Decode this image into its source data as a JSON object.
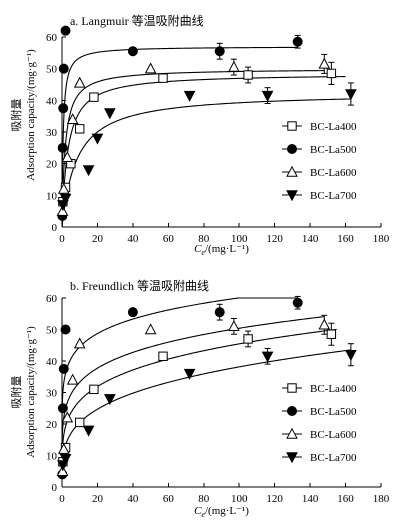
{
  "chart_data": [
    {
      "type": "scatter",
      "title": "a. Langmuir 等温吸附曲线",
      "xlabel_symbol": "C",
      "xlabel_sub": "e",
      "xlabel_unit": "/(mg·L⁻¹)",
      "ylabel_cn": "吸附量",
      "ylabel": "Adsorption capacity/(mg·g⁻¹)",
      "xlim": [
        0,
        180
      ],
      "ylim": [
        0,
        60
      ],
      "xticks": [
        "0",
        "20",
        "40",
        "60",
        "80",
        "100",
        "120",
        "140",
        "160",
        "180"
      ],
      "yticks": [
        "0",
        "10",
        "20",
        "30",
        "40",
        "50",
        "60"
      ],
      "legend_position": "bottom-right",
      "series": [
        {
          "name": "BC-La400",
          "marker": "square",
          "fit": "langmuir",
          "qm": 48.5,
          "kl": 0.3,
          "fit_xmax": 160,
          "x": [
            0.5,
            2,
            5,
            10,
            18,
            57,
            105,
            152
          ],
          "y": [
            8,
            12.5,
            20,
            31,
            41,
            47,
            48,
            48.5
          ],
          "err": [
            0,
            0,
            0,
            0,
            0,
            0,
            2.5,
            3.5
          ]
        },
        {
          "name": "BC-La500",
          "marker": "circle",
          "fit": "langmuir",
          "qm": 57,
          "kl": 1.5,
          "fit_xmax": 133,
          "x": [
            0.2,
            0.4,
            0.7,
            1,
            2,
            40,
            89,
            133
          ],
          "y": [
            3.5,
            25,
            37.5,
            50,
            62,
            55.5,
            55.5,
            58.5
          ],
          "err": [
            0,
            0,
            0,
            0,
            0,
            0,
            2.5,
            2
          ]
        },
        {
          "name": "BC-La600",
          "marker": "triangle",
          "fit": "langmuir",
          "qm": 50,
          "kl": 0.55,
          "fit_xmax": 148,
          "x": [
            0.3,
            1,
            3,
            6,
            10,
            50,
            97,
            148
          ],
          "y": [
            5,
            12,
            22,
            34,
            45.5,
            50,
            50.5,
            51.5
          ],
          "err": [
            0,
            0,
            0,
            0,
            0,
            0,
            2.5,
            3
          ]
        },
        {
          "name": "BC-La700",
          "marker": "triangle-down",
          "fit": "langmuir",
          "qm": 42.5,
          "kl": 0.12,
          "fit_xmax": 163,
          "x": [
            0.5,
            2,
            15,
            20,
            27,
            72,
            116,
            163
          ],
          "y": [
            7,
            9,
            18,
            28,
            36,
            41.5,
            41.5,
            42
          ],
          "err": [
            0,
            0,
            0,
            0,
            0,
            0,
            2.5,
            3.5
          ]
        }
      ]
    },
    {
      "type": "scatter",
      "title": "b. Freundlich 等温吸附曲线",
      "xlabel_symbol": "C",
      "xlabel_sub": "e",
      "xlabel_unit": "/(mg·L⁻¹)",
      "ylabel_cn": "吸附量",
      "ylabel": "Adsorption capacity/(mg·g⁻¹)",
      "xlim": [
        0,
        180
      ],
      "ylim": [
        0,
        60
      ],
      "xticks": [
        "0",
        "20",
        "40",
        "60",
        "80",
        "100",
        "120",
        "140",
        "160",
        "180"
      ],
      "yticks": [
        "0",
        "10",
        "20",
        "30",
        "40",
        "50",
        "60"
      ],
      "legend_position": "bottom-right",
      "series": [
        {
          "name": "BC-La400",
          "marker": "square",
          "fit": "freundlich",
          "kf": 16.5,
          "n": 0.22,
          "fit_xmax": 155,
          "x": [
            0.5,
            2,
            10,
            18,
            57,
            105,
            152
          ],
          "y": [
            8,
            12.5,
            20.5,
            31,
            41.5,
            47,
            48.5
          ],
          "err": [
            0,
            0,
            0,
            0,
            0,
            2.5,
            3.5
          ]
        },
        {
          "name": "BC-La500",
          "marker": "circle",
          "fit": "freundlich",
          "kf": 33,
          "n": 0.13,
          "fit_xmax": 133,
          "x": [
            0.2,
            0.5,
            1,
            2,
            40,
            89,
            133
          ],
          "y": [
            4,
            25,
            37.5,
            50,
            55.5,
            55.5,
            58.5
          ],
          "err": [
            0,
            0,
            0,
            0,
            0,
            2.5,
            2
          ]
        },
        {
          "name": "BC-La600",
          "marker": "triangle",
          "fit": "freundlich",
          "kf": 22,
          "n": 0.18,
          "fit_xmax": 148,
          "x": [
            0.3,
            1,
            3,
            6,
            10,
            50,
            97,
            148
          ],
          "y": [
            5,
            12,
            22,
            34,
            45.5,
            50,
            51,
            51.5
          ],
          "err": [
            0,
            0,
            0,
            0,
            0,
            0,
            2.5,
            3
          ]
        },
        {
          "name": "BC-La700",
          "marker": "triangle-down",
          "fit": "freundlich",
          "kf": 11,
          "n": 0.27,
          "fit_xmax": 163,
          "x": [
            0.5,
            2,
            15,
            27,
            72,
            116,
            163
          ],
          "y": [
            7,
            9,
            18,
            28,
            36,
            41.5,
            42
          ],
          "err": [
            0,
            0,
            0,
            0,
            0,
            2.5,
            3.5
          ]
        }
      ]
    }
  ]
}
